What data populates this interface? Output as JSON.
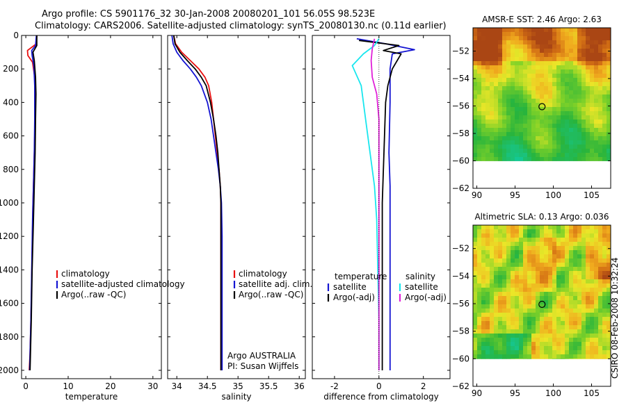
{
  "title": {
    "line1": "Argo profile: CS 5901176_32 30-Jan-2008 20080201_101 56.05S 98.523E",
    "line2": "Climatology: CARS2006. Satellite-adjusted climatology: synTS_20080130.nc (0.11d earlier)"
  },
  "side_label": "CSIRO 08-Feb-2008 10:32:24",
  "colors": {
    "climatology": "#e81010",
    "satellite": "#1414d2",
    "argo": "#000000",
    "satellite_diff_sal": "#18e6ee",
    "argo_diff_sal": "#e020d8"
  },
  "chart_data": [
    {
      "id": "temperature",
      "type": "line",
      "xlabel": "temperature",
      "ylabel": "",
      "xlim": [
        -1,
        32
      ],
      "ylim": [
        2050,
        0
      ],
      "x_ticks": [
        0,
        10,
        20,
        30
      ],
      "y_ticks": [
        0,
        200,
        400,
        600,
        800,
        1000,
        1200,
        1400,
        1600,
        1800,
        2000
      ],
      "legend": {
        "position": "lower-right",
        "entries": [
          "climatology",
          "satellite-adjusted climatology",
          "Argo(..raw -QC)"
        ]
      },
      "series": [
        {
          "name": "climatology",
          "color_key": "climatology",
          "points": [
            [
              2.6,
              0
            ],
            [
              2.5,
              50
            ],
            [
              0.4,
              90
            ],
            [
              0.5,
              120
            ],
            [
              1.6,
              160
            ],
            [
              2.1,
              250
            ],
            [
              2.2,
              400
            ],
            [
              2.1,
              600
            ],
            [
              1.9,
              800
            ],
            [
              1.7,
              1000
            ],
            [
              1.5,
              1300
            ],
            [
              1.3,
              1600
            ],
            [
              1.0,
              1900
            ],
            [
              0.8,
              2000
            ]
          ]
        },
        {
          "name": "satellite-adjusted climatology",
          "color_key": "satellite",
          "points": [
            [
              2.5,
              0
            ],
            [
              2.3,
              60
            ],
            [
              1.4,
              90
            ],
            [
              1.5,
              120
            ],
            [
              1.9,
              180
            ],
            [
              2.1,
              300
            ],
            [
              2.1,
              500
            ],
            [
              2.0,
              700
            ],
            [
              1.8,
              900
            ],
            [
              1.6,
              1100
            ],
            [
              1.4,
              1400
            ],
            [
              1.2,
              1700
            ],
            [
              1.0,
              1900
            ],
            [
              0.9,
              2000
            ]
          ]
        },
        {
          "name": "Argo(..raw -QC)",
          "color_key": "argo",
          "points": [
            [
              2.6,
              0
            ],
            [
              2.6,
              60
            ],
            [
              1.7,
              100
            ],
            [
              2.0,
              150
            ],
            [
              2.3,
              250
            ],
            [
              2.4,
              350
            ],
            [
              2.3,
              500
            ],
            [
              2.2,
              700
            ],
            [
              2.0,
              900
            ],
            [
              1.8,
              1100
            ],
            [
              1.5,
              1400
            ],
            [
              1.3,
              1700
            ],
            [
              1.0,
              2000
            ]
          ]
        }
      ]
    },
    {
      "id": "salinity",
      "type": "line",
      "xlabel": "salinity",
      "ylabel": "",
      "xlim": [
        33.85,
        36.1
      ],
      "ylim": [
        2050,
        0
      ],
      "x_ticks": [
        34,
        34.5,
        35,
        35.5,
        36
      ],
      "y_ticks": [],
      "legend": {
        "position": "lower-right",
        "entries": [
          "climatology",
          "satellite adj. clim.",
          "Argo(..raw -QC)"
        ]
      },
      "annotations": [
        "Argo AUSTRALIA",
        "PI: Susan Wijffels"
      ],
      "series": [
        {
          "name": "climatology",
          "color_key": "climatology",
          "points": [
            [
              33.95,
              0
            ],
            [
              33.98,
              50
            ],
            [
              34.08,
              100
            ],
            [
              34.22,
              150
            ],
            [
              34.36,
              200
            ],
            [
              34.46,
              250
            ],
            [
              34.52,
              300
            ],
            [
              34.57,
              400
            ],
            [
              34.6,
              500
            ],
            [
              34.63,
              600
            ],
            [
              34.66,
              700
            ],
            [
              34.69,
              800
            ],
            [
              34.71,
              900
            ],
            [
              34.72,
              1000
            ],
            [
              34.72,
              1200
            ],
            [
              34.72,
              1500
            ],
            [
              34.72,
              1800
            ],
            [
              34.72,
              2000
            ]
          ]
        },
        {
          "name": "satellite adj. clim.",
          "color_key": "satellite",
          "points": [
            [
              33.92,
              0
            ],
            [
              33.94,
              50
            ],
            [
              34.0,
              100
            ],
            [
              34.1,
              150
            ],
            [
              34.22,
              200
            ],
            [
              34.32,
              250
            ],
            [
              34.4,
              300
            ],
            [
              34.5,
              400
            ],
            [
              34.56,
              500
            ],
            [
              34.6,
              600
            ],
            [
              34.64,
              700
            ],
            [
              34.68,
              800
            ],
            [
              34.71,
              900
            ],
            [
              34.73,
              1000
            ],
            [
              34.74,
              1200
            ],
            [
              34.74,
              1500
            ],
            [
              34.74,
              1800
            ],
            [
              34.74,
              2000
            ]
          ]
        },
        {
          "name": "Argo(..raw -QC)",
          "color_key": "argo",
          "points": [
            [
              33.95,
              0
            ],
            [
              33.97,
              50
            ],
            [
              34.05,
              100
            ],
            [
              34.17,
              150
            ],
            [
              34.3,
              200
            ],
            [
              34.4,
              250
            ],
            [
              34.48,
              300
            ],
            [
              34.55,
              400
            ],
            [
              34.6,
              500
            ],
            [
              34.64,
              600
            ],
            [
              34.67,
              700
            ],
            [
              34.69,
              800
            ],
            [
              34.71,
              900
            ],
            [
              34.72,
              1000
            ],
            [
              34.72,
              1200
            ],
            [
              34.72,
              1500
            ],
            [
              34.72,
              1800
            ],
            [
              34.72,
              2000
            ]
          ]
        }
      ]
    },
    {
      "id": "difference",
      "type": "line",
      "xlabel": "difference from climatology",
      "ylabel": "",
      "xlim": [
        -3,
        3.2
      ],
      "ylim": [
        2050,
        0
      ],
      "x_ticks": [
        -2,
        0,
        2
      ],
      "y_ticks": [],
      "legend": {
        "position": "lower-center",
        "groups": [
          {
            "header": "temperature",
            "entries": [
              "satellite",
              "Argo(-adj)"
            ]
          },
          {
            "header": "salinity",
            "entries": [
              "satellite",
              "Argo(-adj)"
            ]
          }
        ]
      },
      "series": [
        {
          "name": "temperature satellite",
          "color_key": "satellite",
          "points": [
            [
              -1.0,
              20
            ],
            [
              0.3,
              50
            ],
            [
              1.6,
              85
            ],
            [
              0.6,
              110
            ],
            [
              0.5,
              200
            ],
            [
              0.5,
              400
            ],
            [
              0.45,
              700
            ],
            [
              0.5,
              900
            ],
            [
              0.5,
              1100
            ],
            [
              0.5,
              1400
            ],
            [
              0.5,
              1700
            ],
            [
              0.5,
              2000
            ]
          ]
        },
        {
          "name": "temperature Argo(-adj)",
          "color_key": "argo",
          "points": [
            [
              -0.9,
              30
            ],
            [
              0.9,
              60
            ],
            [
              0.2,
              90
            ],
            [
              1.0,
              110
            ],
            [
              0.6,
              200
            ],
            [
              0.4,
              300
            ],
            [
              0.3,
              400
            ],
            [
              0.25,
              600
            ],
            [
              0.2,
              800
            ],
            [
              0.15,
              1000
            ],
            [
              0.15,
              1400
            ],
            [
              0.15,
              1800
            ],
            [
              0.15,
              2000
            ]
          ]
        },
        {
          "name": "salinity satellite",
          "color_key": "satellite_diff_sal",
          "points": [
            [
              0.0,
              20
            ],
            [
              -0.2,
              60
            ],
            [
              -0.7,
              110
            ],
            [
              -1.2,
              180
            ],
            [
              -0.8,
              300
            ],
            [
              -0.6,
              500
            ],
            [
              -0.4,
              700
            ],
            [
              -0.2,
              900
            ],
            [
              -0.1,
              1100
            ],
            [
              -0.05,
              1400
            ],
            [
              0,
              1700
            ],
            [
              0,
              2000
            ]
          ]
        },
        {
          "name": "salinity Argo(-adj)",
          "color_key": "argo_diff_sal",
          "points": [
            [
              -0.2,
              20
            ],
            [
              -0.3,
              80
            ],
            [
              -0.35,
              150
            ],
            [
              -0.3,
              250
            ],
            [
              -0.1,
              350
            ],
            [
              0,
              500
            ],
            [
              0,
              700
            ],
            [
              0,
              1000
            ],
            [
              0,
              1400
            ],
            [
              0,
              1800
            ],
            [
              0,
              2000
            ]
          ]
        }
      ]
    },
    {
      "id": "sst_map",
      "type": "heatmap",
      "title": "AMSR-E SST: 2.46 Argo: 2.63",
      "xlim": [
        89.5,
        107.5
      ],
      "ylim": [
        -62,
        -50.3
      ],
      "data_ylim": [
        -60,
        -50.3
      ],
      "x_ticks": [
        90,
        95,
        100,
        105
      ],
      "y_ticks": [
        -52,
        -54,
        -56,
        -58,
        -60,
        -62
      ],
      "marker": {
        "lon": 98.523,
        "lat": -56.05
      }
    },
    {
      "id": "sla_map",
      "type": "heatmap",
      "title": "Altimetric SLA: 0.13 Argo: 0.036",
      "xlim": [
        89.5,
        107.5
      ],
      "ylim": [
        -62,
        -50.3
      ],
      "data_ylim": [
        -60,
        -50.3
      ],
      "x_ticks": [
        90,
        95,
        100,
        105
      ],
      "y_ticks": [
        -52,
        -54,
        -56,
        -58,
        -60,
        -62
      ],
      "marker": {
        "lon": 98.523,
        "lat": -56.05
      }
    }
  ]
}
